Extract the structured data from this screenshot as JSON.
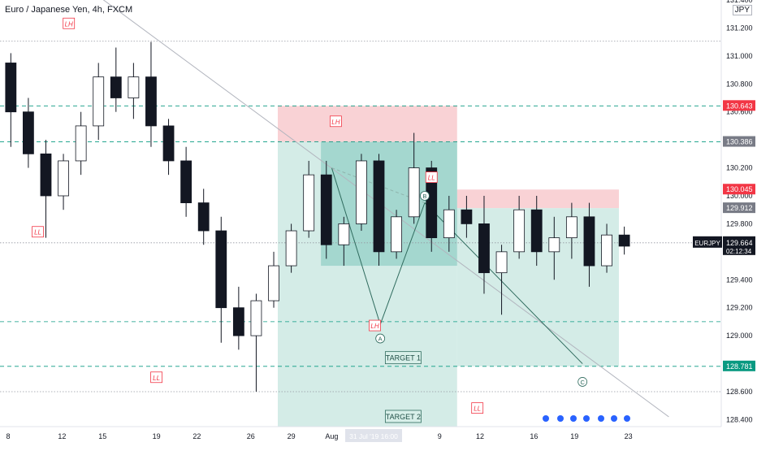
{
  "header": {
    "title": "Euro / Japanese Yen, 4h, FXCM",
    "currency": "JPY"
  },
  "chart_data": {
    "type": "candlestick",
    "symbol": "EURJPY",
    "timeframe": "4h",
    "ylim": [
      128.35,
      131.4
    ],
    "y_ticks": [
      "131.400",
      "131.200",
      "131.000",
      "130.800",
      "130.600",
      "130.400",
      "130.200",
      "130.000",
      "129.800",
      "129.600",
      "129.400",
      "129.200",
      "129.000",
      "128.800",
      "128.600",
      "128.400"
    ],
    "x_ticks": [
      {
        "label": "8",
        "x": 0
      },
      {
        "label": "12",
        "x": 4
      },
      {
        "label": "15",
        "x": 7
      },
      {
        "label": "19",
        "x": 11
      },
      {
        "label": "22",
        "x": 14
      },
      {
        "label": "26",
        "x": 18
      },
      {
        "label": "29",
        "x": 21
      },
      {
        "label": "Aug",
        "x": 24
      },
      {
        "label": "5",
        "x": 28
      },
      {
        "label": "9",
        "x": 32
      },
      {
        "label": "12",
        "x": 35
      },
      {
        "label": "16",
        "x": 39
      },
      {
        "label": "19",
        "x": 42
      },
      {
        "label": "23",
        "x": 46
      }
    ],
    "cursor_date_label": "31 Jul '19  16:00",
    "current_price": {
      "label": "EURJPY",
      "value": "129.664",
      "countdown": "02:12:34"
    },
    "price_labels": [
      {
        "value": 130.643,
        "text": "130.643",
        "color": "#f23645"
      },
      {
        "value": 130.386,
        "text": "130.386",
        "color": "#787b86"
      },
      {
        "value": 130.045,
        "text": "130.045",
        "color": "#f23645"
      },
      {
        "value": 129.912,
        "text": "129.912",
        "color": "#787b86"
      },
      {
        "value": 128.781,
        "text": "128.781",
        "color": "#089981"
      }
    ],
    "horizontal_lines": [
      {
        "value": 131.105,
        "style": "dotted"
      },
      {
        "value": 130.643,
        "style": "dashed"
      },
      {
        "value": 130.386,
        "style": "dashed"
      },
      {
        "value": 129.664,
        "style": "dotted"
      },
      {
        "value": 129.1,
        "style": "dashed"
      },
      {
        "value": 128.781,
        "style": "dashed"
      },
      {
        "value": 128.6,
        "style": "dotted"
      }
    ],
    "position_boxes": [
      {
        "kind": "stop",
        "x0": 20.0,
        "x1": 33.3,
        "y0": 130.386,
        "y1": 130.643
      },
      {
        "kind": "target",
        "x0": 20.0,
        "x1": 33.3,
        "y0": 128.35,
        "y1": 130.386
      },
      {
        "kind": "stop",
        "x0": 33.3,
        "x1": 45.3,
        "y0": 129.912,
        "y1": 130.045
      },
      {
        "kind": "target",
        "x0": 33.3,
        "x1": 45.3,
        "y0": 128.781,
        "y1": 129.912
      },
      {
        "kind": "zone",
        "x0": 23.2,
        "x1": 33.3,
        "y0": 129.5,
        "y1": 130.386
      }
    ],
    "labels": [
      {
        "text": "LH",
        "x": 4.5,
        "y": 131.23,
        "kind": "tag"
      },
      {
        "text": "LL",
        "x": 2.2,
        "y": 129.74,
        "kind": "tag"
      },
      {
        "text": "LH",
        "x": 24.3,
        "y": 130.53,
        "kind": "tag"
      },
      {
        "text": "LL",
        "x": 11.0,
        "y": 128.7,
        "kind": "tag"
      },
      {
        "text": "LL",
        "x": 31.4,
        "y": 130.13,
        "kind": "tag"
      },
      {
        "text": "LH",
        "x": 27.2,
        "y": 129.07,
        "kind": "tag"
      },
      {
        "text": "LL",
        "x": 34.8,
        "y": 128.48,
        "kind": "tag"
      },
      {
        "text": "TARGET 1",
        "x": 29.3,
        "y": 128.84,
        "kind": "target"
      },
      {
        "text": "TARGET 2",
        "x": 29.3,
        "y": 128.42,
        "kind": "target"
      },
      {
        "text": "A",
        "x": 27.6,
        "y": 128.98,
        "kind": "wave"
      },
      {
        "text": "B",
        "x": 30.9,
        "y": 130.0,
        "kind": "wave"
      },
      {
        "text": "C",
        "x": 42.6,
        "y": 128.67,
        "kind": "wave"
      }
    ],
    "lines": [
      {
        "points": [
          [
            6.8,
            131.42
          ],
          [
            49.0,
            128.42
          ]
        ],
        "color": "#b2b5be"
      },
      {
        "points": [
          [
            24.0,
            130.2
          ],
          [
            27.6,
            129.08
          ],
          [
            30.9,
            129.95
          ],
          [
            42.6,
            128.8
          ]
        ],
        "color": "#2f6b5e"
      },
      {
        "points": [
          [
            24.0,
            130.2
          ],
          [
            30.9,
            129.95
          ]
        ],
        "color": "#8fb5ad",
        "dash": true
      }
    ],
    "candles": [
      {
        "o": 130.95,
        "h": 131.02,
        "l": 130.35,
        "c": 130.6
      },
      {
        "o": 130.6,
        "h": 130.7,
        "l": 130.2,
        "c": 130.3
      },
      {
        "o": 130.3,
        "h": 130.4,
        "l": 129.7,
        "c": 130.0
      },
      {
        "o": 130.0,
        "h": 130.3,
        "l": 129.9,
        "c": 130.25
      },
      {
        "o": 130.25,
        "h": 130.6,
        "l": 130.15,
        "c": 130.5
      },
      {
        "o": 130.5,
        "h": 130.95,
        "l": 130.4,
        "c": 130.85
      },
      {
        "o": 130.85,
        "h": 131.06,
        "l": 130.6,
        "c": 130.7
      },
      {
        "o": 130.7,
        "h": 130.95,
        "l": 130.55,
        "c": 130.85
      },
      {
        "o": 130.85,
        "h": 131.1,
        "l": 130.35,
        "c": 130.5
      },
      {
        "o": 130.5,
        "h": 130.55,
        "l": 130.15,
        "c": 130.25
      },
      {
        "o": 130.25,
        "h": 130.35,
        "l": 129.85,
        "c": 129.95
      },
      {
        "o": 129.95,
        "h": 130.05,
        "l": 129.65,
        "c": 129.75
      },
      {
        "o": 129.75,
        "h": 129.85,
        "l": 128.95,
        "c": 129.2
      },
      {
        "o": 129.2,
        "h": 129.35,
        "l": 128.9,
        "c": 129.0
      },
      {
        "o": 129.0,
        "h": 129.3,
        "l": 128.6,
        "c": 129.25
      },
      {
        "o": 129.25,
        "h": 129.6,
        "l": 129.2,
        "c": 129.5
      },
      {
        "o": 129.5,
        "h": 129.8,
        "l": 129.45,
        "c": 129.75
      },
      {
        "o": 129.75,
        "h": 130.25,
        "l": 129.7,
        "c": 130.15
      },
      {
        "o": 130.15,
        "h": 130.25,
        "l": 129.55,
        "c": 129.65
      },
      {
        "o": 129.65,
        "h": 129.85,
        "l": 129.5,
        "c": 129.8
      },
      {
        "o": 129.8,
        "h": 130.3,
        "l": 129.75,
        "c": 130.25
      },
      {
        "o": 130.25,
        "h": 130.3,
        "l": 129.5,
        "c": 129.6
      },
      {
        "o": 129.6,
        "h": 129.9,
        "l": 129.55,
        "c": 129.85
      },
      {
        "o": 129.85,
        "h": 130.45,
        "l": 129.8,
        "c": 130.2
      },
      {
        "o": 130.2,
        "h": 130.25,
        "l": 129.6,
        "c": 129.7
      },
      {
        "o": 129.7,
        "h": 130.0,
        "l": 129.6,
        "c": 129.9
      },
      {
        "o": 129.9,
        "h": 130.0,
        "l": 129.7,
        "c": 129.8
      },
      {
        "o": 129.8,
        "h": 130.0,
        "l": 129.3,
        "c": 129.45
      },
      {
        "o": 129.45,
        "h": 129.65,
        "l": 129.15,
        "c": 129.6
      },
      {
        "o": 129.6,
        "h": 130.0,
        "l": 129.55,
        "c": 129.9
      },
      {
        "o": 129.9,
        "h": 130.0,
        "l": 129.5,
        "c": 129.6
      },
      {
        "o": 129.6,
        "h": 129.85,
        "l": 129.4,
        "c": 129.7
      },
      {
        "o": 129.7,
        "h": 129.95,
        "l": 129.55,
        "c": 129.85
      },
      {
        "o": 129.85,
        "h": 129.95,
        "l": 129.35,
        "c": 129.5
      },
      {
        "o": 129.5,
        "h": 129.8,
        "l": 129.45,
        "c": 129.72
      },
      {
        "o": 129.72,
        "h": 129.78,
        "l": 129.58,
        "c": 129.64
      }
    ]
  }
}
